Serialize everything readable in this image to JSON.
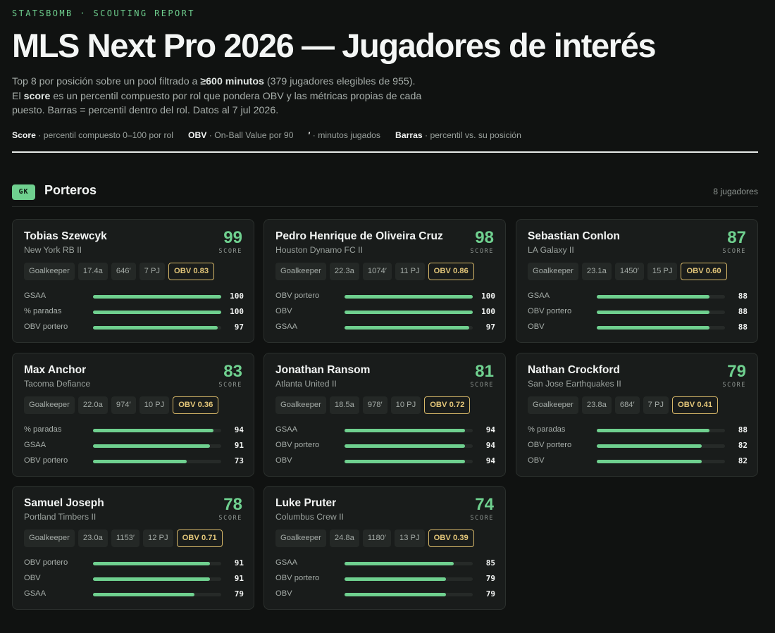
{
  "header": {
    "kicker": "STATSBOMB · SCOUTING REPORT",
    "title": "MLS Next Pro 2026 — Jugadores de interés",
    "intro": {
      "p1": "Top 8 por posición sobre un pool filtrado a ",
      "p1_bold": "≥600 minutos",
      "p2": " (379 jugadores elegibles de 955).",
      "p3": "El ",
      "p3_bold": "score",
      "p4": " es un percentil compuesto por rol que pondera OBV y las métricas propias de cada puesto. Barras = percentil dentro del rol. Datos al 7 jul 2026."
    }
  },
  "legend": [
    {
      "key": "Score",
      "text": " · percentil compuesto 0–100 por rol"
    },
    {
      "key": "OBV",
      "text": " · On-Ball Value por 90"
    },
    {
      "key": "′",
      "text": " · minutos jugados"
    },
    {
      "key": "Barras",
      "text": " · percentil vs. su posición"
    }
  ],
  "section": {
    "badge": "GK",
    "title": "Porteros",
    "count": "8 jugadores"
  },
  "score_label": "SCORE",
  "players": [
    {
      "name": "Tobias Szewcyk",
      "club": "New York RB II",
      "score": "99",
      "chips": [
        "Goalkeeper",
        "17.4a",
        "646′",
        "7 PJ"
      ],
      "obv": "OBV 0.83",
      "metrics": [
        {
          "label": "GSAA",
          "value": 100
        },
        {
          "label": "% paradas",
          "value": 100
        },
        {
          "label": "OBV portero",
          "value": 97
        }
      ]
    },
    {
      "name": "Pedro Henrique de Oliveira Cruz",
      "club": "Houston Dynamo FC II",
      "score": "98",
      "chips": [
        "Goalkeeper",
        "22.3a",
        "1074′",
        "11 PJ"
      ],
      "obv": "OBV 0.86",
      "metrics": [
        {
          "label": "OBV portero",
          "value": 100
        },
        {
          "label": "OBV",
          "value": 100
        },
        {
          "label": "GSAA",
          "value": 97
        }
      ]
    },
    {
      "name": "Sebastian Conlon",
      "club": "LA Galaxy II",
      "score": "87",
      "chips": [
        "Goalkeeper",
        "23.1a",
        "1450′",
        "15 PJ"
      ],
      "obv": "OBV 0.60",
      "metrics": [
        {
          "label": "GSAA",
          "value": 88
        },
        {
          "label": "OBV portero",
          "value": 88
        },
        {
          "label": "OBV",
          "value": 88
        }
      ]
    },
    {
      "name": "Max Anchor",
      "club": "Tacoma Defiance",
      "score": "83",
      "chips": [
        "Goalkeeper",
        "22.0a",
        "974′",
        "10 PJ"
      ],
      "obv": "OBV 0.36",
      "metrics": [
        {
          "label": "% paradas",
          "value": 94
        },
        {
          "label": "GSAA",
          "value": 91
        },
        {
          "label": "OBV portero",
          "value": 73
        }
      ]
    },
    {
      "name": "Jonathan Ransom",
      "club": "Atlanta United II",
      "score": "81",
      "chips": [
        "Goalkeeper",
        "18.5a",
        "978′",
        "10 PJ"
      ],
      "obv": "OBV 0.72",
      "metrics": [
        {
          "label": "GSAA",
          "value": 94
        },
        {
          "label": "OBV portero",
          "value": 94
        },
        {
          "label": "OBV",
          "value": 94
        }
      ]
    },
    {
      "name": "Nathan Crockford",
      "club": "San Jose Earthquakes II",
      "score": "79",
      "chips": [
        "Goalkeeper",
        "23.8a",
        "684′",
        "7 PJ"
      ],
      "obv": "OBV 0.41",
      "metrics": [
        {
          "label": "% paradas",
          "value": 88
        },
        {
          "label": "OBV portero",
          "value": 82
        },
        {
          "label": "OBV",
          "value": 82
        }
      ]
    },
    {
      "name": "Samuel Joseph",
      "club": "Portland Timbers II",
      "score": "78",
      "chips": [
        "Goalkeeper",
        "23.0a",
        "1153′",
        "12 PJ"
      ],
      "obv": "OBV 0.71",
      "metrics": [
        {
          "label": "OBV portero",
          "value": 91
        },
        {
          "label": "OBV",
          "value": 91
        },
        {
          "label": "GSAA",
          "value": 79
        }
      ]
    },
    {
      "name": "Luke Pruter",
      "club": "Columbus Crew II",
      "score": "74",
      "chips": [
        "Goalkeeper",
        "24.8a",
        "1180′",
        "13 PJ"
      ],
      "obv": "OBV 0.39",
      "metrics": [
        {
          "label": "GSAA",
          "value": 85
        },
        {
          "label": "OBV portero",
          "value": 79
        },
        {
          "label": "OBV",
          "value": 79
        }
      ]
    }
  ]
}
